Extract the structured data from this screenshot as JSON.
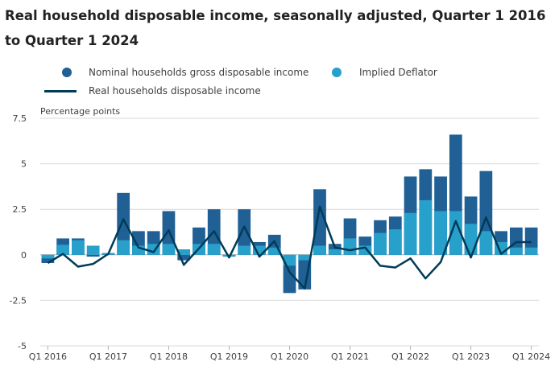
{
  "title": "Real household disposable income, seasonally adjusted, Quarter 1 2016 to Quarter 1 2024",
  "colors": {
    "nominal": "#206095",
    "deflator": "#27a0cc",
    "real": "#003c57",
    "grid": "#d9d9d9",
    "zero_line": "#b3b3b3"
  },
  "legend": {
    "nominal": "Nominal households gross disposable income",
    "deflator": "Implied Deflator",
    "real": "Real households disposable income"
  },
  "chart_data": {
    "type": "bar",
    "title": "Real household disposable income, seasonally adjusted, Quarter 1 2016 to Quarter 1 2024",
    "ylabel": "Percentage points",
    "xlabel": "",
    "ylim": [
      -5,
      7.5
    ],
    "yticks": [
      -5,
      -2.5,
      0,
      2.5,
      5,
      7.5
    ],
    "ytick_labels": [
      "-5",
      "-2.5",
      "0",
      "2.5",
      "5",
      "7.5"
    ],
    "categories": [
      "Q1 2016",
      "Q2 2016",
      "Q3 2016",
      "Q4 2016",
      "Q1 2017",
      "Q2 2017",
      "Q3 2017",
      "Q4 2017",
      "Q1 2018",
      "Q2 2018",
      "Q3 2018",
      "Q4 2018",
      "Q1 2019",
      "Q2 2019",
      "Q3 2019",
      "Q4 2019",
      "Q1 2020",
      "Q2 2020",
      "Q3 2020",
      "Q4 2020",
      "Q1 2021",
      "Q2 2021",
      "Q3 2021",
      "Q4 2021",
      "Q1 2022",
      "Q2 2022",
      "Q3 2022",
      "Q4 2022",
      "Q1 2023",
      "Q2 2023",
      "Q3 2023",
      "Q4 2023",
      "Q1 2024"
    ],
    "xtick_labels": [
      {
        "index": 0,
        "label": "Q1 2016"
      },
      {
        "index": 4,
        "label": "Q1 2017"
      },
      {
        "index": 8,
        "label": "Q1 2018"
      },
      {
        "index": 12,
        "label": "Q1 2019"
      },
      {
        "index": 16,
        "label": "Q1 2020"
      },
      {
        "index": 20,
        "label": "Q1 2021"
      },
      {
        "index": 24,
        "label": "Q1 2022"
      },
      {
        "index": 28,
        "label": "Q1 2023"
      },
      {
        "index": 32,
        "label": "Q1 2024"
      }
    ],
    "series": [
      {
        "name": "Nominal households gross disposable income",
        "kind": "bar",
        "values": [
          -0.45,
          0.9,
          0.9,
          -0.1,
          0.1,
          3.4,
          1.3,
          1.3,
          2.4,
          -0.3,
          1.5,
          2.5,
          -0.1,
          2.5,
          0.7,
          1.1,
          -2.1,
          -1.9,
          3.6,
          0.6,
          2.0,
          1.0,
          1.9,
          2.1,
          4.3,
          4.7,
          4.3,
          6.6,
          3.2,
          4.6,
          1.3,
          1.5,
          1.5
        ]
      },
      {
        "name": "Implied Deflator",
        "kind": "bar",
        "values": [
          -0.2,
          0.55,
          0.8,
          0.5,
          0.1,
          0.8,
          0.5,
          0.6,
          0.6,
          0.3,
          0.6,
          0.6,
          -0.1,
          0.5,
          0.5,
          0.4,
          -0.6,
          -0.3,
          0.5,
          0.3,
          0.9,
          0.5,
          1.2,
          1.4,
          2.3,
          3.0,
          2.4,
          2.4,
          1.7,
          1.3,
          0.7,
          0.4,
          0.4
        ]
      },
      {
        "name": "Real households disposable income",
        "kind": "line",
        "values": [
          -0.45,
          0.05,
          -0.65,
          -0.5,
          0.05,
          1.95,
          0.4,
          0.15,
          1.35,
          -0.55,
          0.35,
          1.3,
          -0.15,
          1.55,
          -0.1,
          0.75,
          -0.95,
          -1.85,
          2.65,
          0.4,
          0.25,
          0.4,
          -0.6,
          -0.7,
          -0.2,
          -1.3,
          -0.4,
          1.85,
          -0.15,
          2.05,
          0.05,
          0.7,
          0.7
        ]
      }
    ]
  }
}
